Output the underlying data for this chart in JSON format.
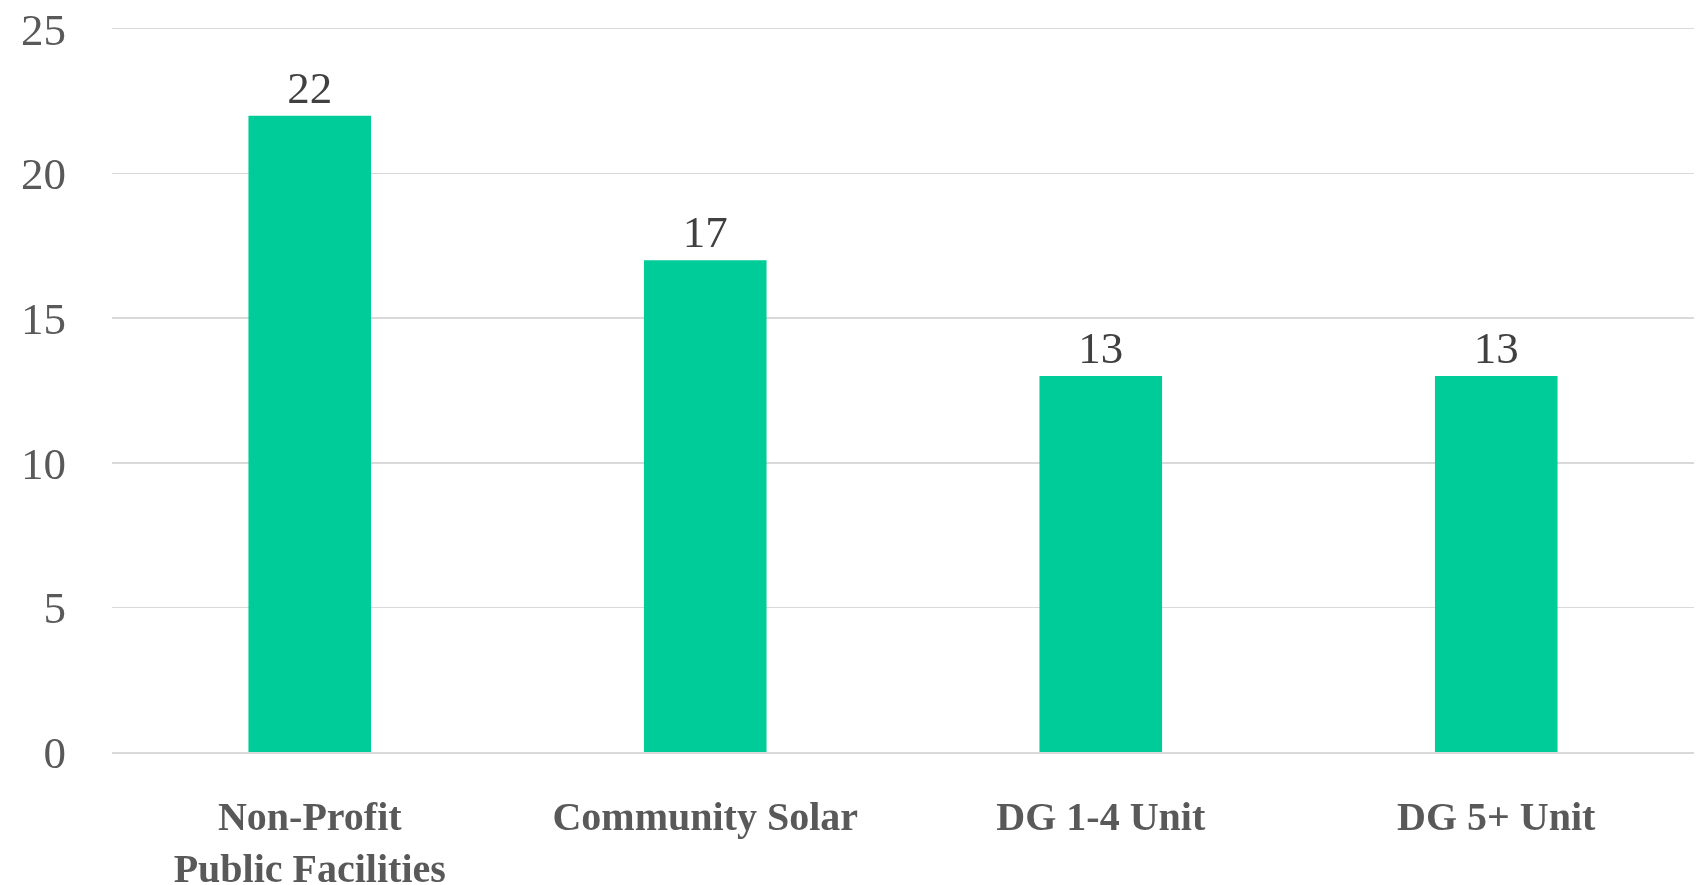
{
  "chart_data": {
    "type": "bar",
    "categories": [
      "Non-Profit Public Facilities",
      "Community Solar",
      "DG 1-4 Unit",
      "DG 5+ Unit"
    ],
    "values": [
      22,
      17,
      13,
      13
    ],
    "color": "#00cc99",
    "ylim": [
      0,
      25
    ],
    "yticks": [
      0,
      5,
      10,
      15,
      20,
      25
    ],
    "grid": "y",
    "data_labels": true
  }
}
